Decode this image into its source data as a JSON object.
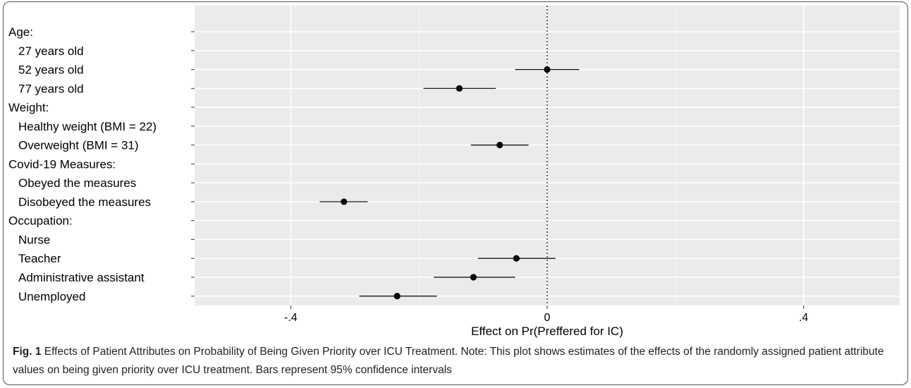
{
  "chart_data": {
    "type": "scatter",
    "subtype": "coefficient-plot",
    "xlabel": "Effect on Pr(Preffered for IC)",
    "xlim": [
      -0.55,
      0.55
    ],
    "xticks": [
      -0.4,
      0,
      0.4
    ],
    "xtick_labels": [
      "-.4",
      "0",
      ".4"
    ],
    "reference_line": {
      "x": 0,
      "style": "dotted"
    },
    "grid": true,
    "rows": [
      {
        "label": "Age:",
        "header": true
      },
      {
        "label": "27 years old",
        "header": false
      },
      {
        "label": "52 years old",
        "header": false,
        "estimate": 0.0,
        "ci": [
          -0.05,
          0.05
        ]
      },
      {
        "label": "77 years old",
        "header": false,
        "estimate": -0.137,
        "ci": [
          -0.193,
          -0.08
        ]
      },
      {
        "label": "Weight:",
        "header": true
      },
      {
        "label": "Healthy weight (BMI = 22)",
        "header": false
      },
      {
        "label": "Overweight (BMI = 31)",
        "header": false,
        "estimate": -0.074,
        "ci": [
          -0.119,
          -0.029
        ]
      },
      {
        "label": "Covid-19 Measures:",
        "header": true
      },
      {
        "label": "Obeyed the measures",
        "header": false
      },
      {
        "label": "Disobeyed the measures",
        "header": false,
        "estimate": -0.317,
        "ci": [
          -0.355,
          -0.28
        ]
      },
      {
        "label": "Occupation:",
        "header": true
      },
      {
        "label": "Nurse",
        "header": false
      },
      {
        "label": "Teacher",
        "header": false,
        "estimate": -0.048,
        "ci": [
          -0.108,
          0.013
        ]
      },
      {
        "label": "Administrative assistant",
        "header": false,
        "estimate": -0.115,
        "ci": [
          -0.177,
          -0.05
        ]
      },
      {
        "label": "Unemployed",
        "header": false,
        "estimate": -0.234,
        "ci": [
          -0.293,
          -0.172
        ]
      }
    ]
  },
  "caption": {
    "fig_label": "Fig. 1",
    "text": " Effects of Patient Attributes on Probability of Being Given Priority over ICU Treatment. Note: This plot shows estimates of the effects of the randomly assigned patient attribute values on being given priority over ICU treatment. Bars represent 95% confidence intervals"
  }
}
